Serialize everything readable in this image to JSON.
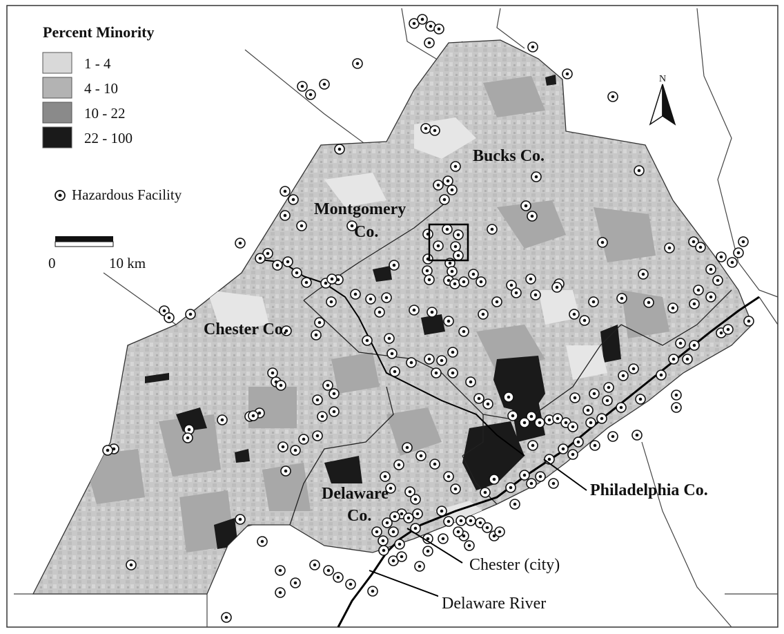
{
  "legend": {
    "title": "Percent Minority",
    "classes": [
      {
        "label": "1 - 4",
        "color": "#d9d9d9"
      },
      {
        "label": "4 - 10",
        "color": "#b3b3b3"
      },
      {
        "label": "10 - 22",
        "color": "#8a8a8a"
      },
      {
        "label": "22 - 100",
        "color": "#1a1a1a"
      }
    ],
    "facility_label": "Hazardous Facility"
  },
  "scalebar": {
    "start": "0",
    "end": "10 km"
  },
  "north": "N",
  "counties": {
    "bucks": "Bucks Co.",
    "montgomery_1": "Montgomery",
    "montgomery_2": "Co.",
    "chester": "Chester Co.",
    "delaware_1": "Delaware",
    "delaware_2": "Co.",
    "philadelphia": "Philadelphia Co."
  },
  "callouts": {
    "chester_city": "Chester (city)",
    "delaware_river": "Delaware River"
  },
  "colors": {
    "background": "#ffffff",
    "region_base": "#cfcfcf",
    "light": "#e6e6e6",
    "medium": "#a8a8a8",
    "dark": "#1a1a1a",
    "river": "#000000"
  }
}
